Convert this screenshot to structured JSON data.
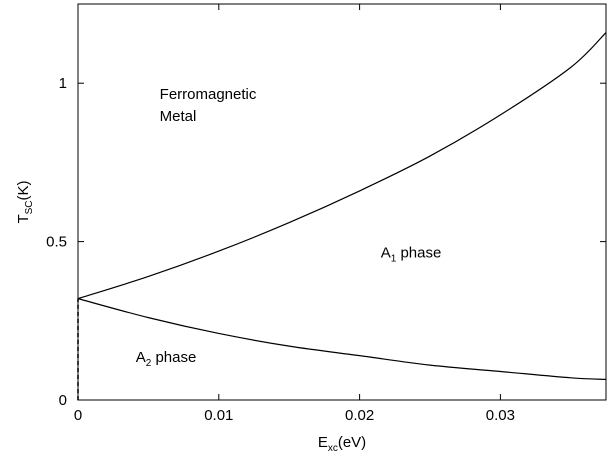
{
  "chart_data": {
    "type": "line",
    "xlabel": "E",
    "xlabel_sub": "xc",
    "xlabel_unit": "(eV)",
    "ylabel": "T",
    "ylabel_sub": "SC",
    "ylabel_unit": "(K)",
    "xlim": [
      0,
      0.0375
    ],
    "ylim": [
      0,
      1.25
    ],
    "x_ticks": [
      0,
      0.01,
      0.02,
      0.03
    ],
    "x_tick_labels": [
      "0",
      "0.01",
      "0.02",
      "0.03"
    ],
    "y_ticks": [
      0,
      0.5,
      1
    ],
    "y_tick_labels": [
      "0",
      "0.5",
      "1"
    ],
    "grid": false,
    "series": [
      {
        "style": "solid",
        "x": [
          0,
          0.005,
          0.01,
          0.015,
          0.02,
          0.025,
          0.03,
          0.035,
          0.0375
        ],
        "y": [
          0.32,
          0.39,
          0.47,
          0.56,
          0.66,
          0.77,
          0.9,
          1.05,
          1.16
        ]
      },
      {
        "style": "solid",
        "x": [
          0,
          0.005,
          0.01,
          0.015,
          0.02,
          0.025,
          0.03,
          0.035,
          0.0375
        ],
        "y": [
          0.32,
          0.26,
          0.21,
          0.17,
          0.14,
          0.11,
          0.09,
          0.07,
          0.065
        ]
      },
      {
        "style": "dashed",
        "x": [
          0,
          0
        ],
        "y": [
          0,
          0.32
        ]
      }
    ],
    "annotations": [
      {
        "id": "ferromagnetic",
        "lines": [
          "Ferromagnetic",
          "Metal"
        ],
        "x": 0.0058,
        "y": 0.95
      },
      {
        "id": "a1",
        "text_main": "A",
        "text_sub": "1",
        "text_tail": " phase",
        "x": 0.0215,
        "y": 0.45
      },
      {
        "id": "a2",
        "text_main": "A",
        "text_sub": "2",
        "text_tail": " phase",
        "x": 0.0041,
        "y": 0.12
      }
    ]
  }
}
